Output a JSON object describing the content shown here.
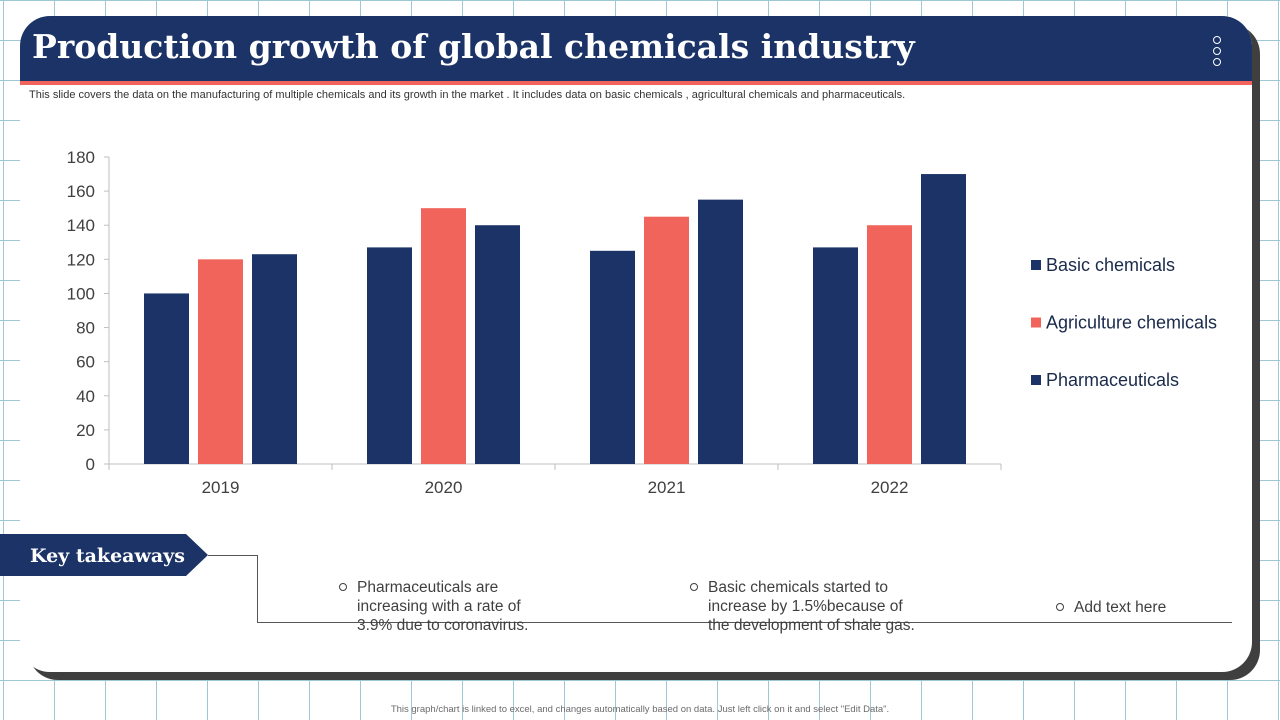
{
  "title": "Production growth of global chemicals industry",
  "subtitle": "This slide covers the data on the manufacturing of multiple chemicals  and its growth in the market . It includes data on  basic chemicals , agricultural chemicals and pharmaceuticals.",
  "colors": {
    "navy": "#1b3366",
    "coral": "#f0645c",
    "grid": "#9ec8d4"
  },
  "chart_data": {
    "type": "bar",
    "categories": [
      "2019",
      "2020",
      "2021",
      "2022"
    ],
    "series": [
      {
        "name": "Basic chemicals",
        "values": [
          100,
          127,
          125,
          127
        ],
        "color": "#1b3366"
      },
      {
        "name": "Agriculture chemicals",
        "values": [
          120,
          150,
          145,
          140
        ],
        "color": "#f0645c"
      },
      {
        "name": "Pharmaceuticals",
        "values": [
          123,
          140,
          155,
          170
        ],
        "color": "#1b3366"
      }
    ],
    "ylim": [
      0,
      180
    ],
    "yticks": [
      0,
      20,
      40,
      60,
      80,
      100,
      120,
      140,
      160,
      180
    ],
    "legend_position": "right",
    "grid": false
  },
  "takeaways": {
    "label": "Key takeaways",
    "items": [
      {
        "lines": [
          "Pharmaceuticals   are",
          "increasing  with a rate of",
          "3.9% due to coronavirus."
        ]
      },
      {
        "lines": [
          "Basic chemicals started to",
          "increase by  1.5%because of",
          "the development of shale gas."
        ]
      },
      {
        "lines": [
          "Add text here"
        ]
      }
    ]
  },
  "footer": "This graph/chart is linked to excel, and changes automatically based on data. Just left click on it and select \"Edit Data\"."
}
